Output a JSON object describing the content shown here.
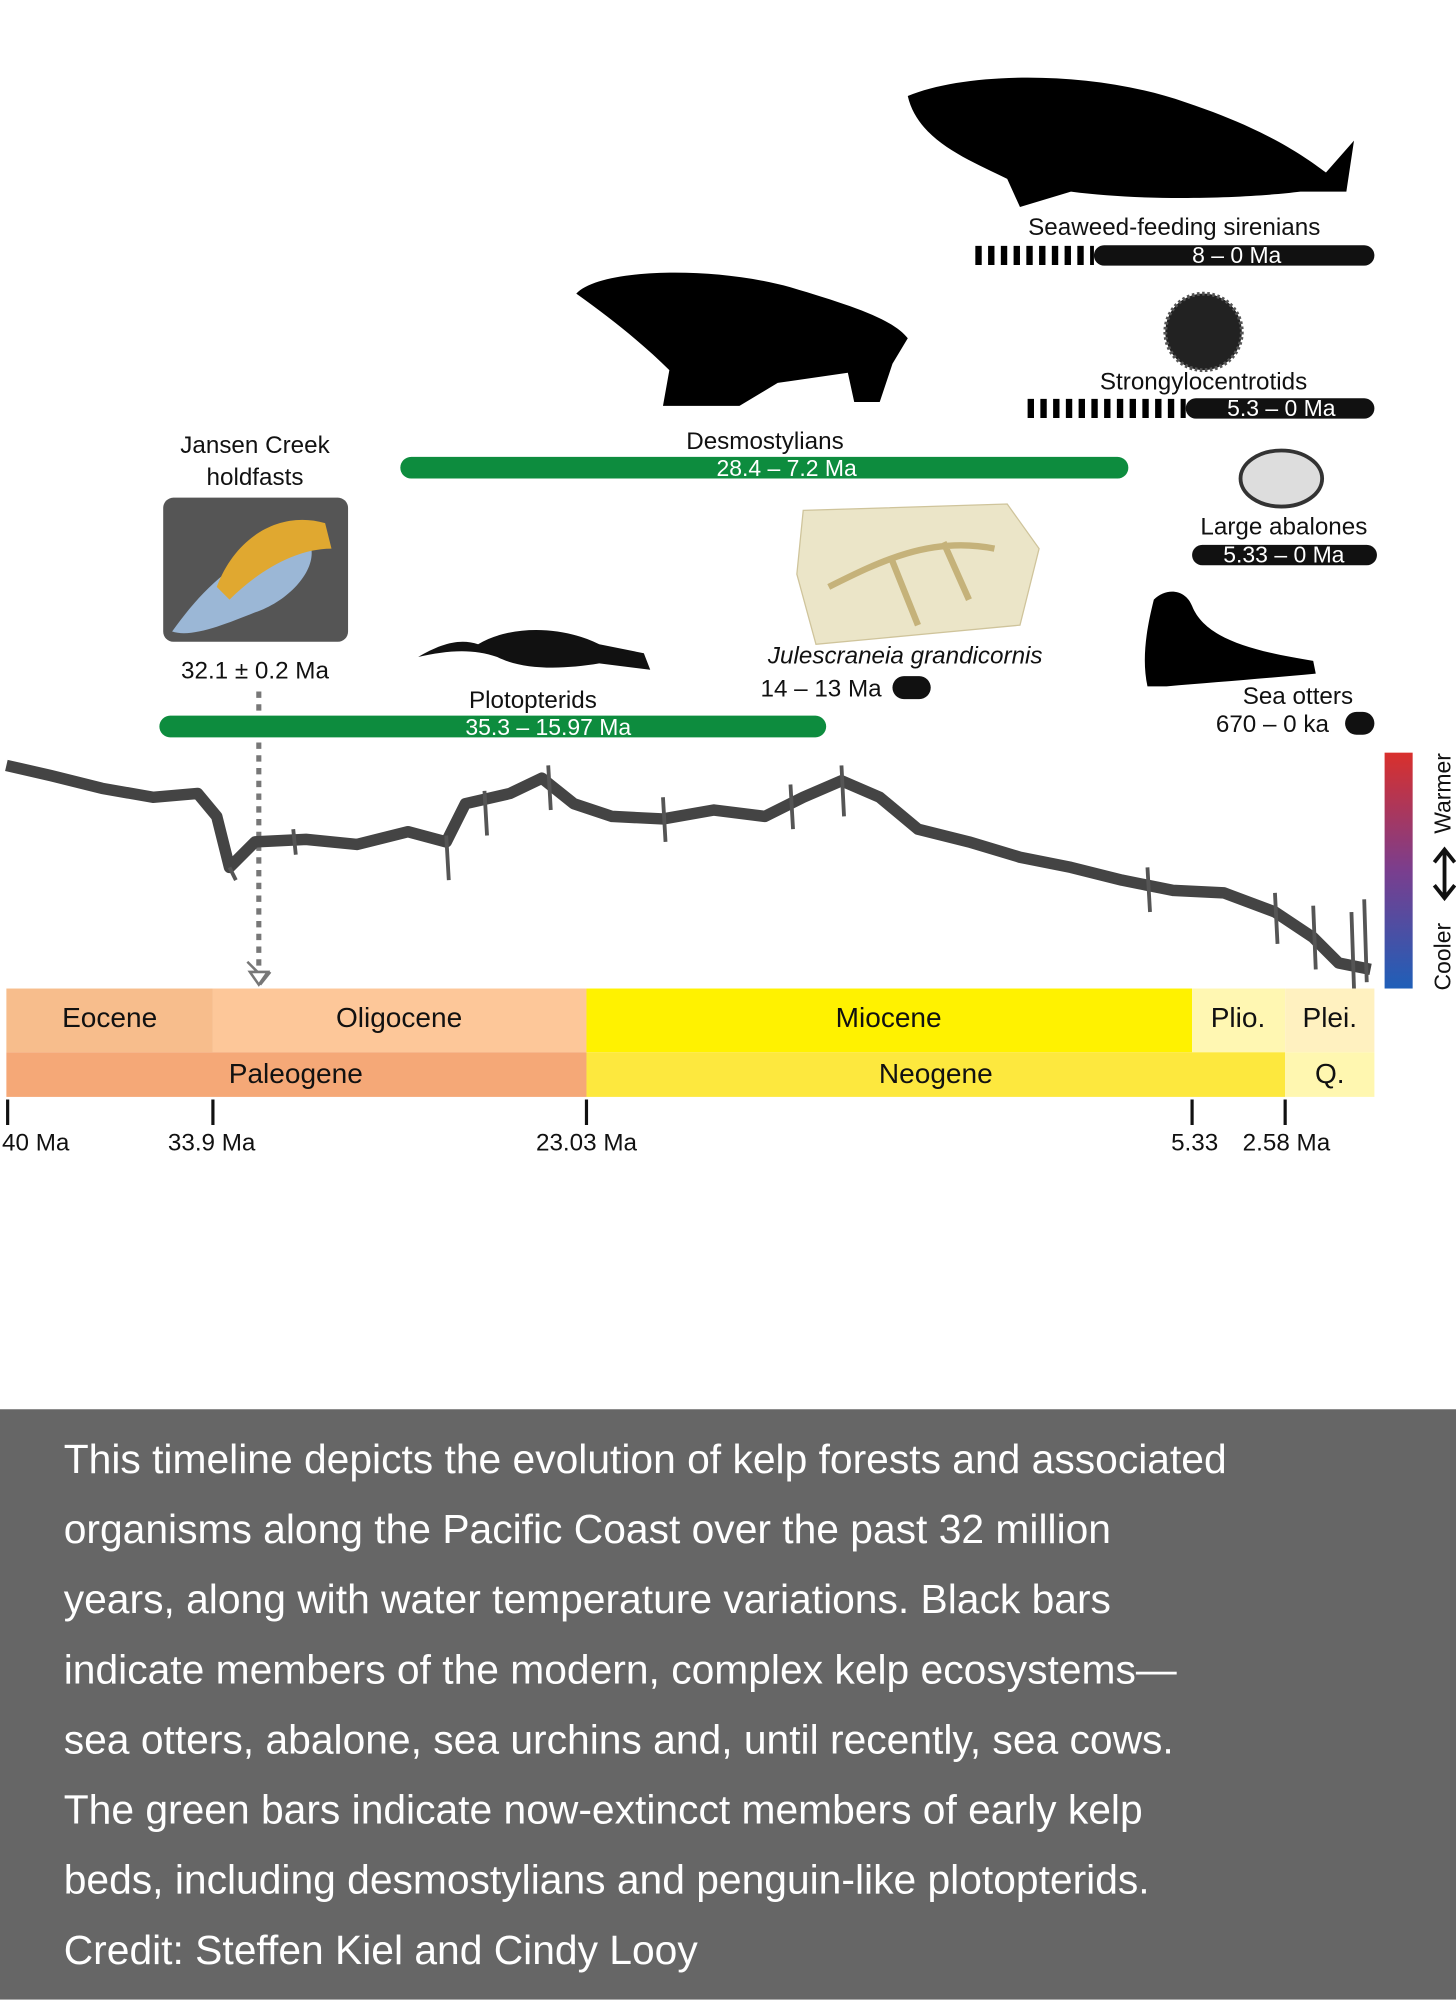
{
  "organisms": [
    {
      "name": "Seaweed-feeding sirenians",
      "range": "8 – 0 Ma"
    },
    {
      "name": "Strongylocentrotids",
      "range": "5.3 – 0 Ma"
    },
    {
      "name": "Large abalones",
      "range": "5.33 – 0 Ma"
    },
    {
      "name": "Desmostylians",
      "range": "28.4 – 7.2 Ma"
    },
    {
      "name": "Plotopterids",
      "range": "35.3 – 15.97 Ma"
    },
    {
      "name": "Julescraneia grandicornis",
      "range": "14 – 13 Ma"
    },
    {
      "name": "Sea otters",
      "range": "670 – 0 ka"
    }
  ],
  "holdfasts": {
    "name_lines": [
      "Jansen Creek",
      "holdfasts"
    ],
    "age": "32.1 ± 0.2 Ma"
  },
  "temperature_scale": {
    "warmer": "Warmer",
    "cooler": "Cooler"
  },
  "epochs": [
    "Eocene",
    "Oligocene",
    "Miocene",
    "Plio.",
    "Plei."
  ],
  "periods": [
    "Paleogene",
    "Neogene",
    "Q."
  ],
  "ticks": [
    "40 Ma",
    "33.9 Ma",
    "23.03 Ma",
    "5.33",
    "2.58 Ma"
  ],
  "caption": {
    "lines": [
      "This timeline depicts the evolution of kelp forests and associated",
      "organisms along the Pacific Coast over the past 32 million",
      "years, along with water temperature variations. Black bars",
      "indicate members of the modern, complex kelp ecosystems—",
      "sea otters, abalone, sea urchins and, until recently, sea cows.",
      "The green bars indicate now-extincct members of early kelp",
      "beds, including desmostylians and penguin-like plotopterids.",
      "Credit: Steffen Kiel and Cindy Looy"
    ]
  }
}
